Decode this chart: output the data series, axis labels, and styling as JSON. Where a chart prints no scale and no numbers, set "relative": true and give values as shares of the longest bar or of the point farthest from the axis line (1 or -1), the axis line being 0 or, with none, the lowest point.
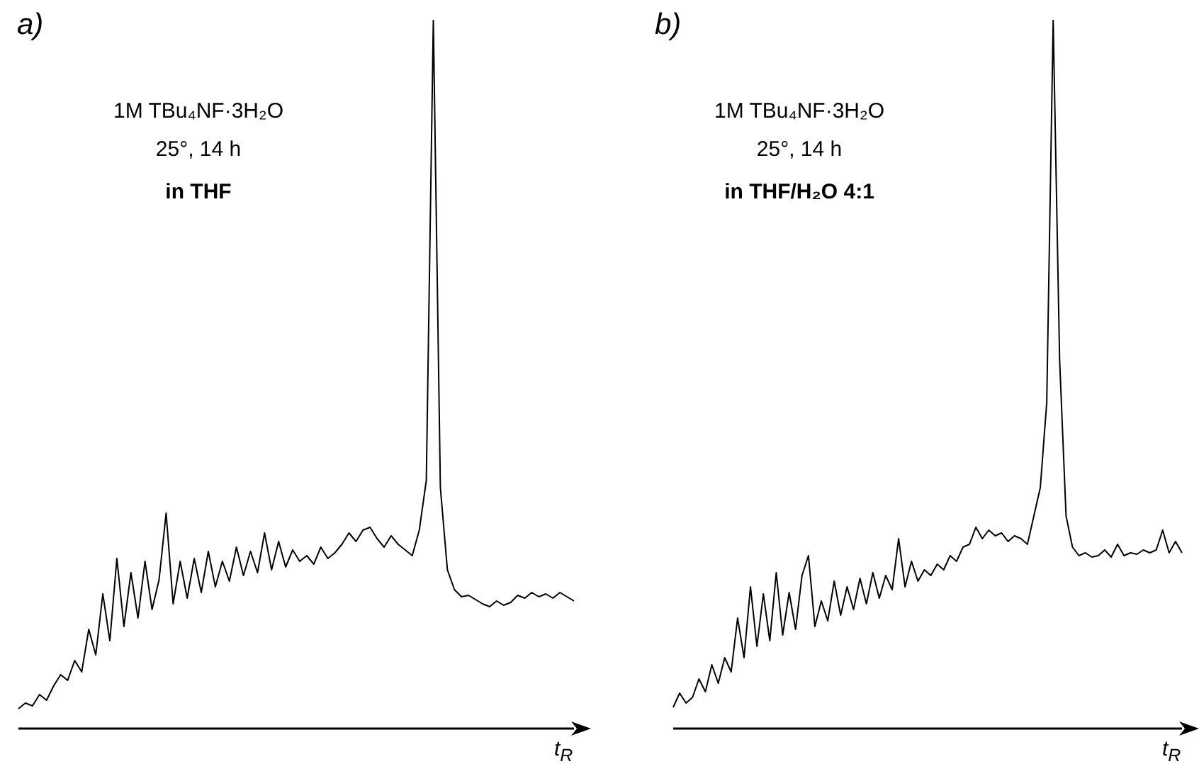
{
  "chart_data": [
    {
      "type": "line",
      "title": "a)",
      "xlabel": "t$_{R}$",
      "annotations": [
        "1M TBu₄NF·3H₂O",
        "25°, 14 h",
        "in THF"
      ],
      "relative": true,
      "categories": [
        null,
        null,
        null,
        null,
        null,
        null,
        null,
        null,
        null,
        null,
        null,
        null,
        null,
        null,
        null,
        null,
        null,
        null,
        null,
        null,
        null,
        null,
        null,
        null,
        null,
        null,
        null,
        null,
        null,
        null,
        null,
        null,
        null,
        null,
        null,
        null,
        null,
        null,
        null,
        null,
        null,
        null,
        null,
        null,
        null,
        null,
        null,
        null,
        null,
        null,
        null,
        null,
        null,
        null,
        null,
        null,
        null,
        null,
        null,
        null,
        null,
        null,
        null,
        null,
        null,
        null,
        null,
        null,
        null,
        null,
        null,
        null,
        null,
        null,
        null,
        null,
        null,
        null,
        null,
        null
      ],
      "series": [
        {
          "color": "#000000",
          "values": [
            0.028,
            0.036,
            0.032,
            0.048,
            0.04,
            0.06,
            0.076,
            0.068,
            0.096,
            0.08,
            0.14,
            0.104,
            0.19,
            0.124,
            0.24,
            0.144,
            0.22,
            0.156,
            0.236,
            0.168,
            0.21,
            0.304,
            0.176,
            0.236,
            0.184,
            0.24,
            0.192,
            0.25,
            0.2,
            0.236,
            0.208,
            0.256,
            0.216,
            0.25,
            0.22,
            0.276,
            0.224,
            0.264,
            0.228,
            0.252,
            0.236,
            0.244,
            0.232,
            0.256,
            0.24,
            0.248,
            0.26,
            0.276,
            0.264,
            0.28,
            0.284,
            0.268,
            0.256,
            0.272,
            0.26,
            0.252,
            0.244,
            0.28,
            0.35,
            1,
            0.34,
            0.224,
            0.196,
            0.186,
            0.188,
            0.182,
            0.176,
            0.172,
            0.18,
            0.174,
            0.178,
            0.188,
            0.184,
            0.192,
            0.186,
            0.19,
            0.184,
            0.192,
            0.186,
            0.18
          ]
        }
      ]
    },
    {
      "type": "line",
      "title": "b)",
      "xlabel": "t$_{R}$",
      "annotations": [
        "1M TBu₄NF·3H₂O",
        "25°, 14 h",
        "in THF/H₂O 4:1"
      ],
      "relative": true,
      "categories": [
        null,
        null,
        null,
        null,
        null,
        null,
        null,
        null,
        null,
        null,
        null,
        null,
        null,
        null,
        null,
        null,
        null,
        null,
        null,
        null,
        null,
        null,
        null,
        null,
        null,
        null,
        null,
        null,
        null,
        null,
        null,
        null,
        null,
        null,
        null,
        null,
        null,
        null,
        null,
        null,
        null,
        null,
        null,
        null,
        null,
        null,
        null,
        null,
        null,
        null,
        null,
        null,
        null,
        null,
        null,
        null,
        null,
        null,
        null,
        null,
        null,
        null,
        null,
        null,
        null,
        null,
        null,
        null,
        null,
        null,
        null,
        null,
        null,
        null,
        null,
        null,
        null,
        null,
        null,
        null
      ],
      "series": [
        {
          "color": "#000000",
          "values": [
            0.03,
            0.05,
            0.036,
            0.044,
            0.07,
            0.052,
            0.09,
            0.064,
            0.1,
            0.08,
            0.156,
            0.1,
            0.2,
            0.116,
            0.19,
            0.124,
            0.22,
            0.132,
            0.192,
            0.14,
            0.216,
            0.244,
            0.144,
            0.18,
            0.152,
            0.208,
            0.16,
            0.2,
            0.168,
            0.212,
            0.176,
            0.22,
            0.184,
            0.216,
            0.196,
            0.268,
            0.2,
            0.236,
            0.208,
            0.224,
            0.216,
            0.232,
            0.224,
            0.244,
            0.236,
            0.256,
            0.26,
            0.284,
            0.268,
            0.28,
            0.272,
            0.276,
            0.264,
            0.272,
            0.268,
            0.26,
            0.3,
            0.34,
            0.46,
            1,
            0.52,
            0.3,
            0.256,
            0.244,
            0.248,
            0.242,
            0.244,
            0.252,
            0.242,
            0.26,
            0.244,
            0.248,
            0.246,
            0.252,
            0.248,
            0.252,
            0.28,
            0.248,
            0.264,
            0.248
          ]
        }
      ]
    }
  ]
}
